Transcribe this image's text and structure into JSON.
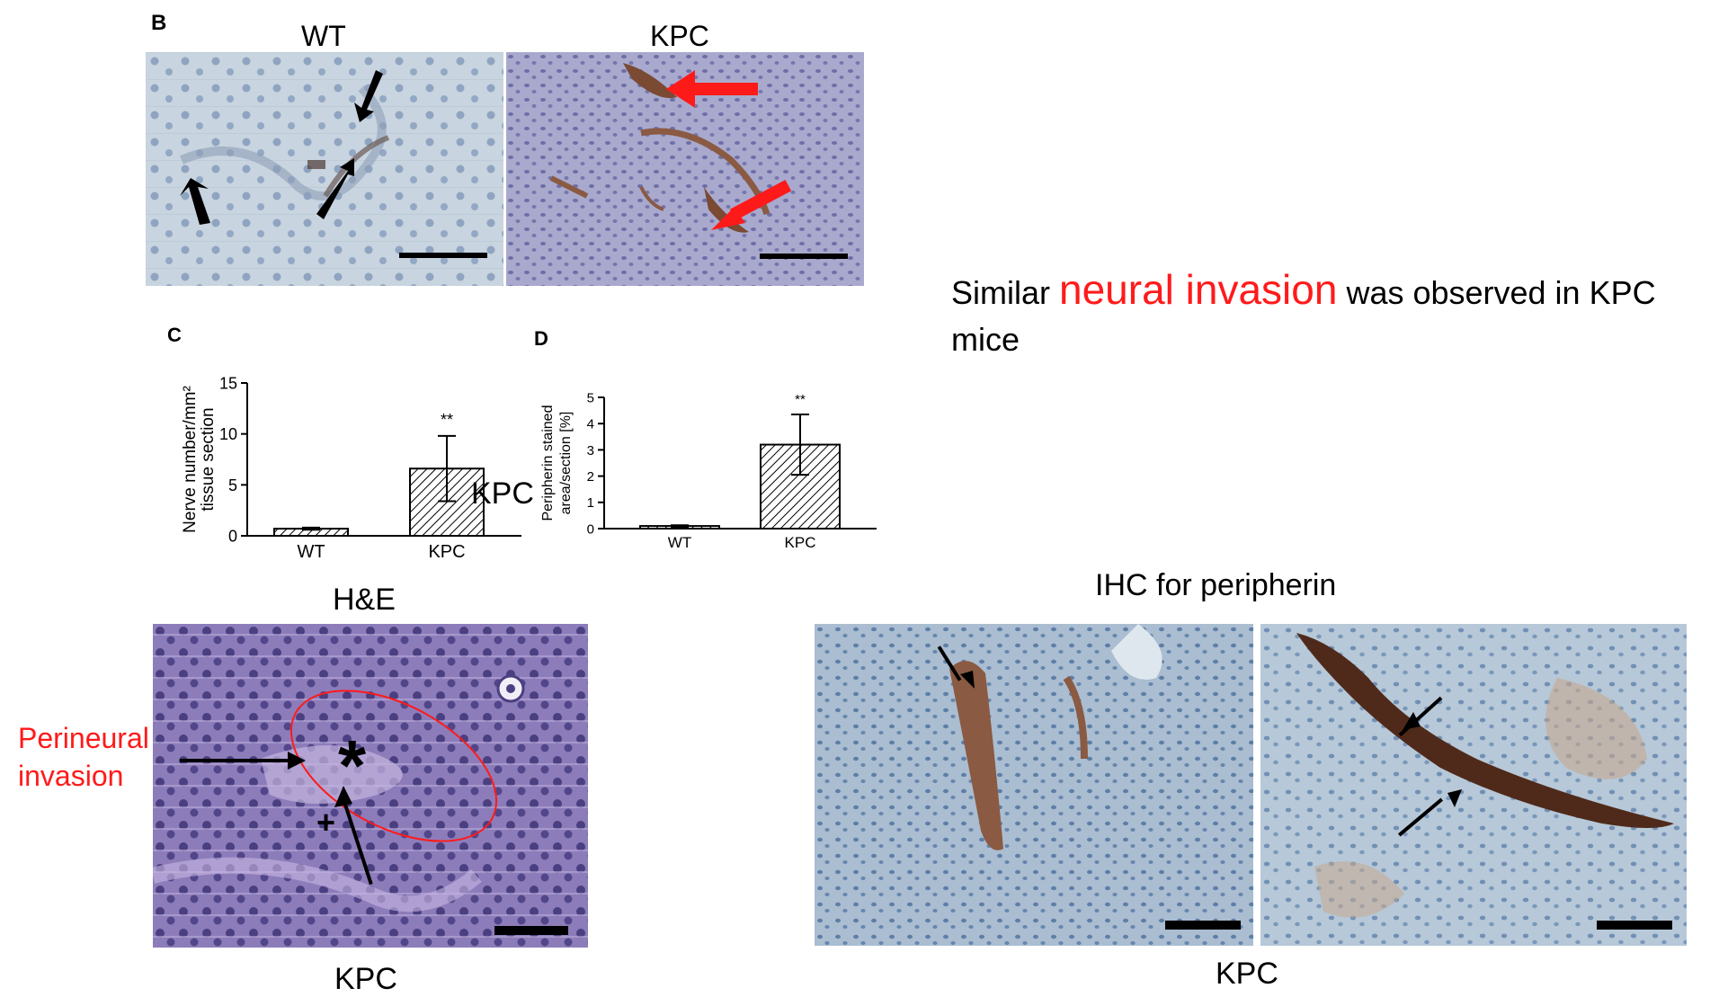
{
  "panel_b": {
    "letter": "B",
    "wt_label": "WT",
    "kpc_label": "KPC"
  },
  "headline": {
    "prefix": "Similar ",
    "accent": "neural invasion",
    "suffix": " was observed in KPC mice"
  },
  "chart_data": [
    {
      "id": "C",
      "type": "bar",
      "categories": [
        "WT",
        "KPC"
      ],
      "values": [
        0.7,
        6.6
      ],
      "errors": [
        0.1,
        3.2
      ],
      "ylabel_line1": "Nerve number/mm²",
      "ylabel_line2": "tissue section",
      "ylim": [
        0,
        15
      ],
      "yticks": [
        0,
        5,
        10,
        15
      ],
      "significance": "**",
      "significance_index": 1,
      "hatch": true
    },
    {
      "id": "D",
      "type": "bar",
      "categories": [
        "WT",
        "KPC"
      ],
      "values": [
        0.1,
        3.2
      ],
      "errors": [
        0.03,
        1.15
      ],
      "ylabel_line1": "Peripherin stained",
      "ylabel_line2": "area/section [%]",
      "ylim": [
        0,
        5
      ],
      "yticks": [
        0,
        1,
        2,
        3,
        4,
        5
      ],
      "significance": "**",
      "significance_index": 1,
      "hatch": true
    }
  ],
  "stray_label": "KPC",
  "he_panel": {
    "title": "H&E",
    "caption": "KPC",
    "perineural_line1": "Perineural",
    "perineural_line2": "invasion",
    "asterisk": "*",
    "plus": "+"
  },
  "ihc_panel": {
    "title": "IHC for peripherin",
    "caption": "KPC"
  },
  "colors": {
    "accent_red": "#ff1a1a",
    "he_stain": "#8a78b8",
    "ihc_background": "#a9bcd0",
    "peripherin_brown": "#5a3120"
  }
}
